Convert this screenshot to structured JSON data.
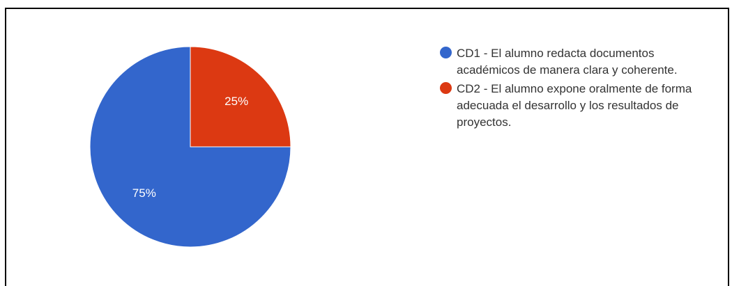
{
  "chart_data": {
    "type": "pie",
    "title": "",
    "legend_position": "right",
    "series": [
      {
        "name": "CD1 - El alumno redacta documentos académicos de manera clara y coherente.",
        "value": 75,
        "label": "75%",
        "color": "#3366cc"
      },
      {
        "name": "CD2 - El alumno expone oralmente de forma adecuada el desarrollo y los resultados de proyectos.",
        "value": 25,
        "label": "25%",
        "color": "#dc3912"
      }
    ]
  }
}
